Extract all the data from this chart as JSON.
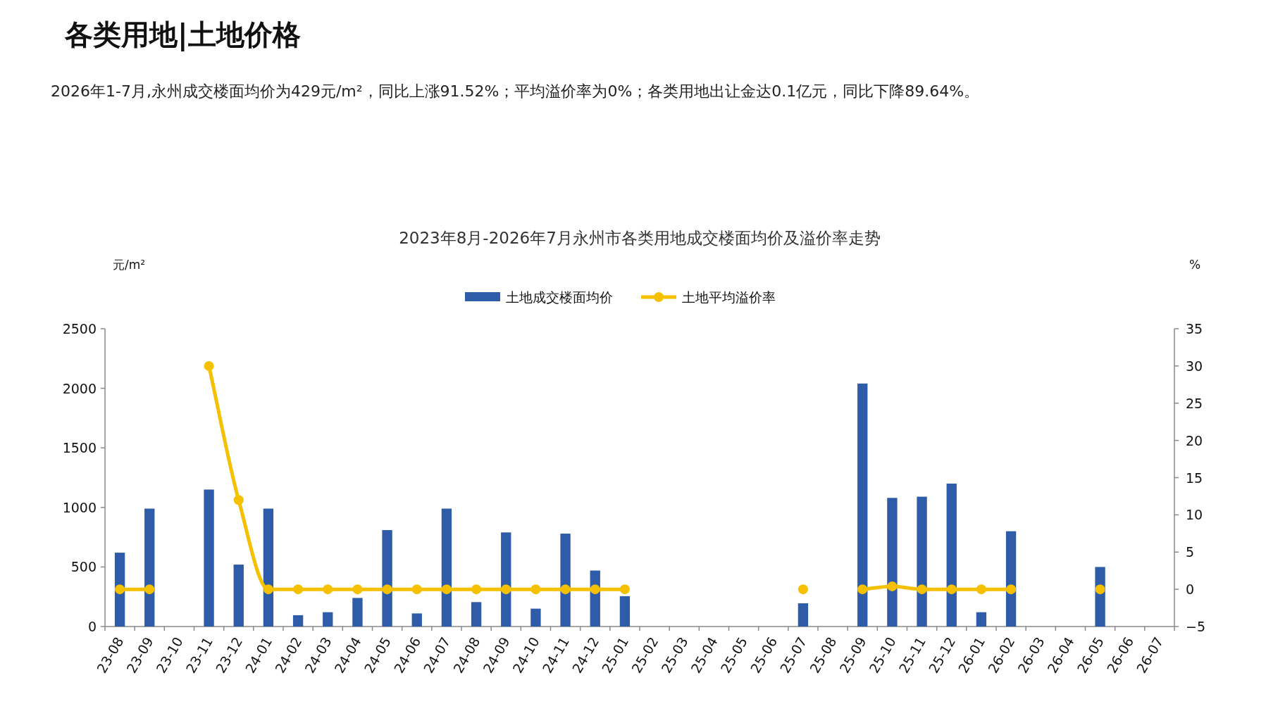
{
  "chart_data": {
    "type": "bar",
    "title": "2023年8月-2026年7月永州市各类用地成交楼面均价及溢价率走势",
    "ylabel": "元/m²",
    "y2label": "%",
    "annotations": [
      "各类用地|土地价格",
      "2026年1-7月,永州成交楼面均价为429元/m²，同比上涨91.52%；平均溢价率为0%；各类用地出让金达0.1亿元，同比下降89.64%。"
    ],
    "categories": [
      "23-08",
      "23-09",
      "23-10",
      "23-11",
      "23-12",
      "24-01",
      "24-02",
      "24-03",
      "24-04",
      "24-05",
      "24-06",
      "24-07",
      "24-08",
      "24-09",
      "24-10",
      "24-11",
      "24-12",
      "25-01",
      "25-02",
      "25-03",
      "25-04",
      "25-05",
      "25-06",
      "25-07",
      "25-08",
      "25-09",
      "25-10",
      "25-11",
      "25-12",
      "26-01",
      "26-02",
      "26-03",
      "26-04",
      "26-05",
      "26-06",
      "26-07"
    ],
    "series": [
      {
        "name": "土地成交楼面均价",
        "color": "#2f5ca8",
        "values": [
          620,
          990,
          null,
          1150,
          520,
          990,
          95,
          120,
          240,
          810,
          110,
          990,
          205,
          790,
          150,
          780,
          470,
          255,
          null,
          null,
          null,
          null,
          null,
          195,
          null,
          2040,
          1080,
          1090,
          1200,
          120,
          800,
          null,
          null,
          500,
          null,
          null
        ]
      },
      {
        "name": "土地平均溢价率",
        "type": "line",
        "axis": "y2",
        "color": "#f5c000",
        "marker": "circle",
        "line_style": "solid",
        "values": [
          0,
          0,
          null,
          30,
          12,
          0,
          0,
          0,
          0,
          0,
          0,
          0,
          0,
          0,
          0,
          0,
          0,
          0,
          null,
          null,
          null,
          null,
          null,
          0,
          null,
          0,
          0.4,
          0,
          0,
          0,
          0,
          null,
          null,
          0,
          null,
          null
        ]
      }
    ],
    "ylim": [
      0,
      2500
    ],
    "yticks": [
      0,
      500,
      1000,
      1500,
      2000,
      2500
    ],
    "y2lim": [
      -5,
      35
    ],
    "y2ticks": [
      -5,
      0,
      5,
      10,
      15,
      20,
      25,
      30,
      35
    ],
    "grid": false,
    "legend": "top"
  }
}
